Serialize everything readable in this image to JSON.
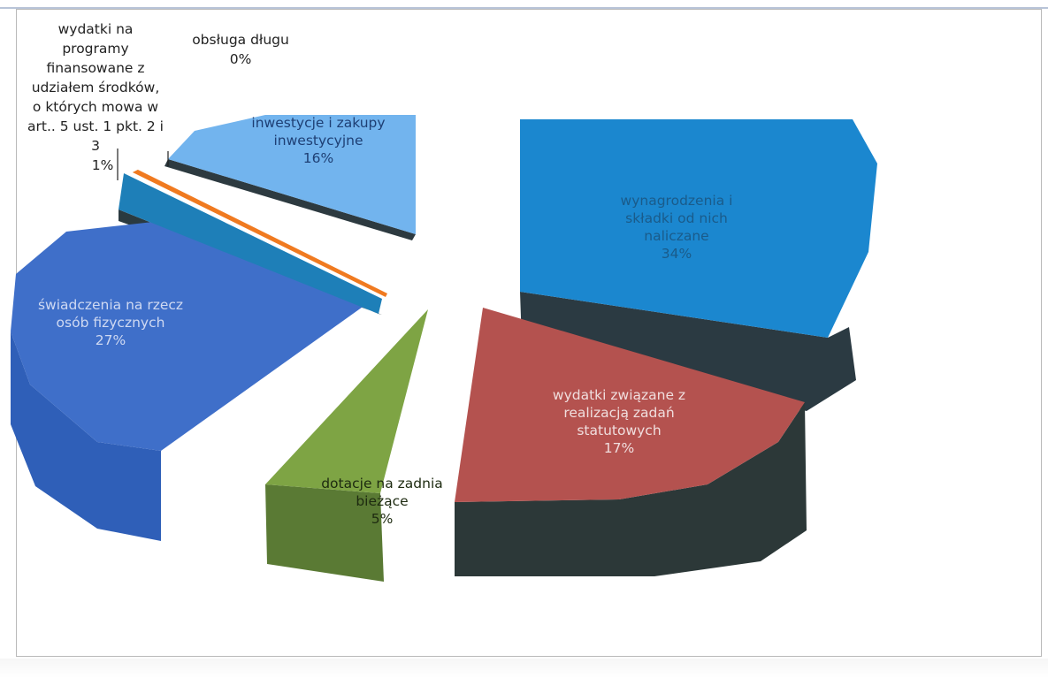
{
  "chart_data": {
    "type": "pie",
    "title": "",
    "style": "3d-exploded",
    "slices": [
      {
        "label": "wynagrodzenia i składki od nich naliczane",
        "value": 34,
        "display": "34%",
        "color": "#1b87cf",
        "side": "#2b3a42"
      },
      {
        "label": "wydatki związane z realizacją zadań statutowych",
        "value": 17,
        "display": "17%",
        "color": "#b4524f",
        "side": "#2c3838"
      },
      {
        "label": "dotacje na zadnia bieżące",
        "value": 5,
        "display": "5%",
        "color": "#7ea444",
        "side": "#5a7a34"
      },
      {
        "label": "świadczenia na rzecz osób fizycznych",
        "value": 27,
        "display": "27%",
        "color": "#3f6fc9",
        "side": "#2f5fb8"
      },
      {
        "label": "wydatki na programy finansowane z udziałem środków, o których mowa w art.. 5 ust. 1 pkt. 2 i 3",
        "value": 1,
        "display": "1%",
        "color": "#1e7fb8",
        "side": "#2a3a40"
      },
      {
        "label": "obsługa długu",
        "value": 0,
        "display": "0%",
        "color": "#f07a20",
        "side": "#c85f10"
      },
      {
        "label": "inwestycje i zakupy inwestycyjne",
        "value": 16,
        "display": "16%",
        "color": "#72b4ee",
        "side": "#2d3a40"
      }
    ]
  }
}
